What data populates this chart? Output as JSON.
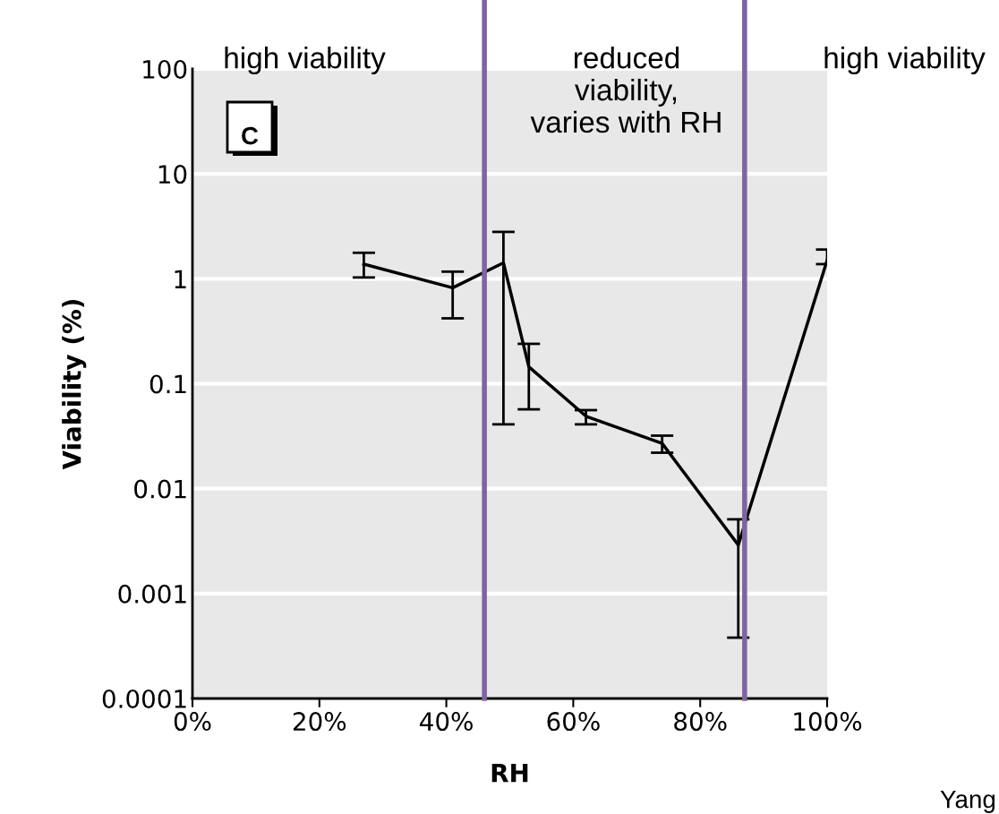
{
  "chart_data": {
    "type": "line",
    "xlabel": "RH",
    "ylabel": "Viability (%)",
    "x": [
      27,
      41,
      49,
      53,
      62,
      74,
      86,
      100
    ],
    "series": [
      {
        "color": "#000000",
        "values": [
          1.38,
          0.82,
          1.42,
          0.145,
          0.049,
          0.027,
          0.0029,
          1.5
        ],
        "errors": [
          [
            1.03,
            1.77
          ],
          [
            0.42,
            1.17
          ],
          [
            0.041,
            2.8
          ],
          [
            0.057,
            0.24
          ],
          [
            0.041,
            0.056
          ],
          [
            0.022,
            0.032
          ],
          [
            0.00038,
            0.0051
          ],
          [
            1.38,
            1.9
          ]
        ]
      }
    ],
    "log": "y",
    "xlim": [
      0,
      100
    ],
    "ylim": [
      0.0001,
      100
    ],
    "xticks": [
      {
        "value": 0,
        "label": "0%"
      },
      {
        "value": 20,
        "label": "20%"
      },
      {
        "value": 40,
        "label": "40%"
      },
      {
        "value": 60,
        "label": "60%"
      },
      {
        "value": 80,
        "label": "80%"
      },
      {
        "value": 100,
        "label": "100%"
      }
    ],
    "yticks": [
      {
        "value": 0.0001,
        "label": "0.0001"
      },
      {
        "value": 0.001,
        "label": "0.001"
      },
      {
        "value": 0.01,
        "label": "0.01"
      },
      {
        "value": 0.1,
        "label": "0.1"
      },
      1,
      10,
      100
    ],
    "grid": "y",
    "marker": "none",
    "line_style": "solid",
    "legend": false,
    "ref_lines": [
      {
        "axis": "x",
        "value": 46,
        "color": "#8064a2"
      },
      {
        "axis": "x",
        "value": 87,
        "color": "#8064a2"
      }
    ],
    "annotations": [
      "high viability",
      "reduced\nviability,\nvaries with RH",
      "high viability",
      "C",
      "Yang"
    ]
  }
}
